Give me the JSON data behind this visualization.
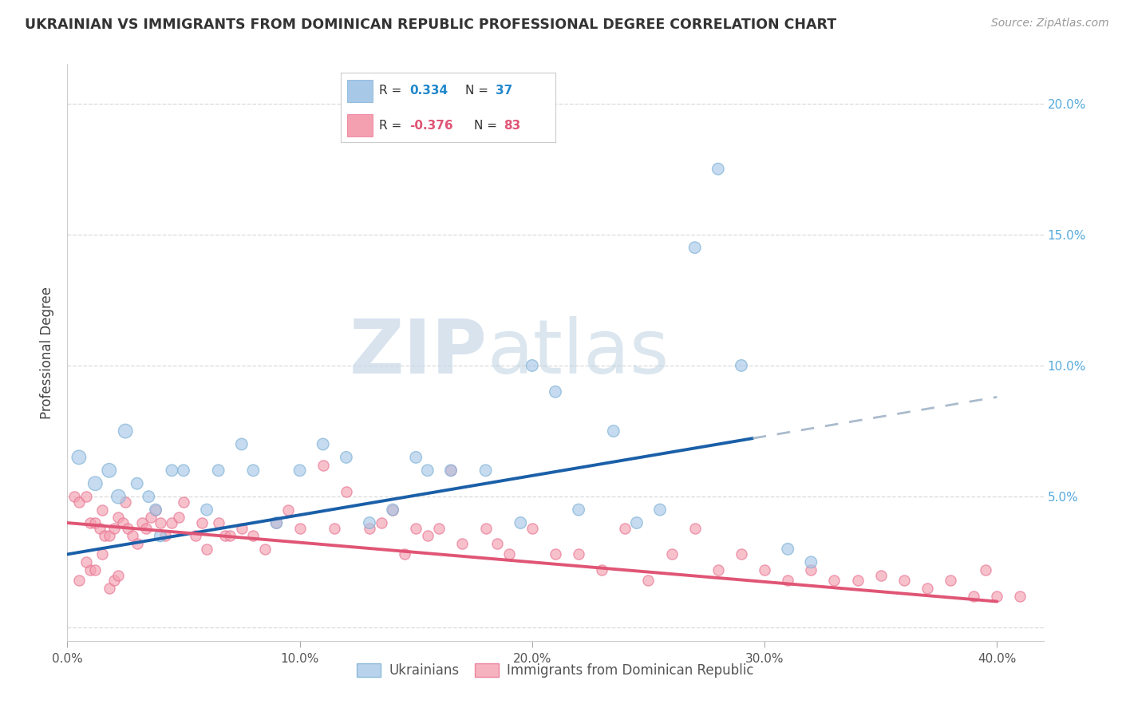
{
  "title": "UKRAINIAN VS IMMIGRANTS FROM DOMINICAN REPUBLIC PROFESSIONAL DEGREE CORRELATION CHART",
  "source": "Source: ZipAtlas.com",
  "ylabel": "Professional Degree",
  "xlim": [
    0.0,
    0.42
  ],
  "ylim": [
    -0.005,
    0.215
  ],
  "blue_color": "#a8c8e8",
  "blue_edge_color": "#7aafd4",
  "pink_color": "#f4a0b0",
  "pink_edge_color": "#e87090",
  "blue_line_color": "#1a5fa8",
  "pink_line_color": "#e05575",
  "dash_color": "#aabbcc",
  "watermark_zip": "ZIP",
  "watermark_atlas": "atlas",
  "background_color": "#ffffff",
  "grid_color": "#d8d8d8",
  "blue_dot_size": 110,
  "pink_dot_size": 90,
  "blue_x": [
    0.005,
    0.012,
    0.018,
    0.022,
    0.025,
    0.03,
    0.035,
    0.038,
    0.04,
    0.045,
    0.05,
    0.06,
    0.065,
    0.075,
    0.08,
    0.09,
    0.1,
    0.11,
    0.12,
    0.13,
    0.14,
    0.15,
    0.155,
    0.165,
    0.18,
    0.195,
    0.2,
    0.21,
    0.22,
    0.235,
    0.245,
    0.255,
    0.27,
    0.28,
    0.29,
    0.31,
    0.32
  ],
  "blue_y": [
    0.065,
    0.055,
    0.06,
    0.05,
    0.075,
    0.055,
    0.05,
    0.045,
    0.035,
    0.06,
    0.06,
    0.045,
    0.06,
    0.07,
    0.06,
    0.04,
    0.06,
    0.07,
    0.065,
    0.04,
    0.045,
    0.065,
    0.06,
    0.06,
    0.06,
    0.04,
    0.1,
    0.09,
    0.045,
    0.075,
    0.04,
    0.045,
    0.145,
    0.175,
    0.1,
    0.03,
    0.025
  ],
  "pink_x": [
    0.003,
    0.005,
    0.008,
    0.01,
    0.012,
    0.014,
    0.015,
    0.016,
    0.018,
    0.02,
    0.022,
    0.024,
    0.025,
    0.026,
    0.028,
    0.03,
    0.032,
    0.034,
    0.036,
    0.038,
    0.04,
    0.042,
    0.045,
    0.048,
    0.05,
    0.055,
    0.058,
    0.06,
    0.065,
    0.068,
    0.07,
    0.075,
    0.08,
    0.085,
    0.09,
    0.095,
    0.1,
    0.11,
    0.115,
    0.12,
    0.13,
    0.135,
    0.14,
    0.145,
    0.15,
    0.155,
    0.16,
    0.165,
    0.17,
    0.18,
    0.185,
    0.19,
    0.2,
    0.21,
    0.22,
    0.23,
    0.24,
    0.25,
    0.26,
    0.27,
    0.28,
    0.29,
    0.3,
    0.31,
    0.32,
    0.33,
    0.34,
    0.35,
    0.36,
    0.37,
    0.38,
    0.39,
    0.395,
    0.4,
    0.41,
    0.015,
    0.01,
    0.008,
    0.005,
    0.012,
    0.018,
    0.02,
    0.022
  ],
  "pink_y": [
    0.05,
    0.048,
    0.05,
    0.04,
    0.04,
    0.038,
    0.045,
    0.035,
    0.035,
    0.038,
    0.042,
    0.04,
    0.048,
    0.038,
    0.035,
    0.032,
    0.04,
    0.038,
    0.042,
    0.045,
    0.04,
    0.035,
    0.04,
    0.042,
    0.048,
    0.035,
    0.04,
    0.03,
    0.04,
    0.035,
    0.035,
    0.038,
    0.035,
    0.03,
    0.04,
    0.045,
    0.038,
    0.062,
    0.038,
    0.052,
    0.038,
    0.04,
    0.045,
    0.028,
    0.038,
    0.035,
    0.038,
    0.06,
    0.032,
    0.038,
    0.032,
    0.028,
    0.038,
    0.028,
    0.028,
    0.022,
    0.038,
    0.018,
    0.028,
    0.038,
    0.022,
    0.028,
    0.022,
    0.018,
    0.022,
    0.018,
    0.018,
    0.02,
    0.018,
    0.015,
    0.018,
    0.012,
    0.022,
    0.012,
    0.012,
    0.028,
    0.022,
    0.025,
    0.018,
    0.022,
    0.015,
    0.018,
    0.02
  ],
  "blue_trend_y0": 0.028,
  "blue_trend_y1": 0.088,
  "blue_solid_xend": 0.295,
  "pink_trend_y0": 0.04,
  "pink_trend_y1": 0.01,
  "y_ticks": [
    0.0,
    0.05,
    0.1,
    0.15,
    0.2
  ],
  "y_tick_right_labels": [
    "",
    "5.0%",
    "10.0%",
    "15.0%",
    "20.0%"
  ],
  "x_ticks": [
    0.0,
    0.1,
    0.2,
    0.3,
    0.4
  ],
  "x_tick_labels": [
    "0.0%",
    "10.0%",
    "20.0%",
    "30.0%",
    "40.0%"
  ],
  "legend1_label": "R =  0.334   N = 37",
  "legend2_label": "R = -0.376   N = 83",
  "bottom_legend1": "Ukrainians",
  "bottom_legend2": "Immigrants from Dominican Republic"
}
